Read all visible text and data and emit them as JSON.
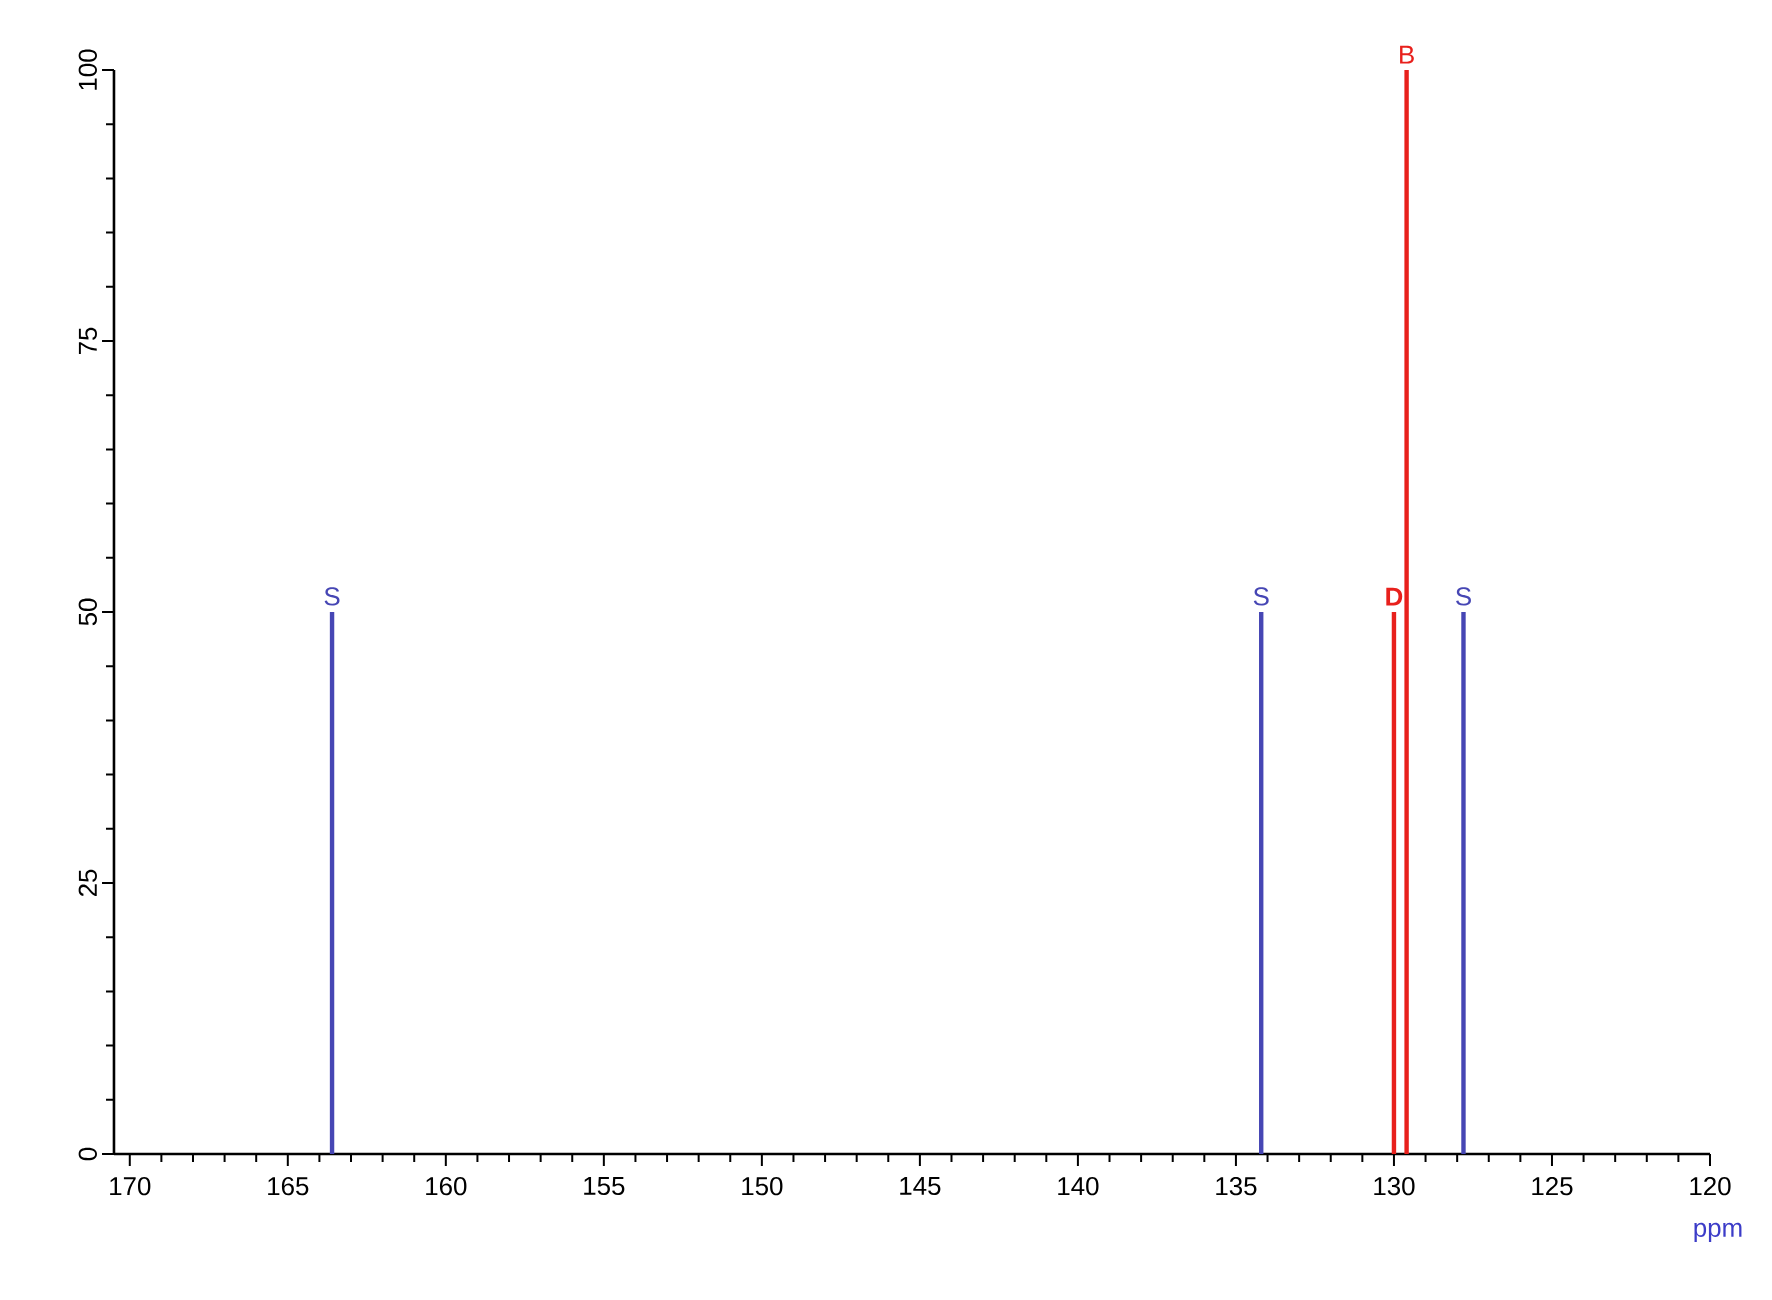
{
  "chart_data": {
    "type": "bar",
    "xlabel": "ppm",
    "xlim": [
      170.5,
      120
    ],
    "xticks": [
      170,
      165,
      160,
      155,
      150,
      145,
      140,
      135,
      130,
      125,
      120
    ],
    "ylim": [
      0,
      100
    ],
    "yticks": [
      0,
      25,
      50,
      75,
      100
    ],
    "series": [
      {
        "color": "#4646b4",
        "x": [
          163.6,
          134.2,
          127.8
        ],
        "values": [
          50,
          50,
          50
        ]
      },
      {
        "color": "#e8201c",
        "x": [
          130.0,
          129.6
        ],
        "values": [
          50,
          100
        ]
      }
    ],
    "annotations": [
      {
        "text": "S",
        "x": 163.6,
        "y": 50
      },
      {
        "text": "S",
        "x": 134.2,
        "y": 50
      },
      {
        "text": "**D**",
        "x": 130.0,
        "y": 50
      },
      {
        "text": "S",
        "x": 127.8,
        "y": 50
      },
      {
        "text": "B",
        "x": 129.6,
        "y": 100
      }
    ]
  }
}
